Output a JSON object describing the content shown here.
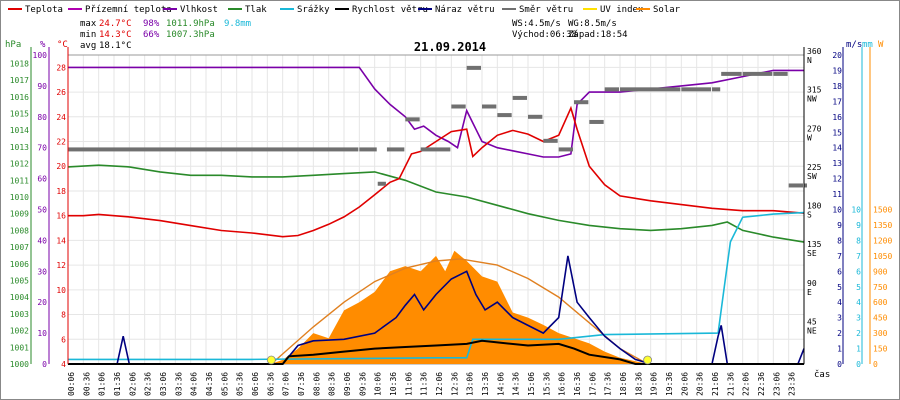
{
  "legend": [
    {
      "label": "Teplota",
      "color": "#e00000"
    },
    {
      "label": "Přízemní teplota",
      "color": "#b000b0"
    },
    {
      "label": "Vlhkost",
      "color": "#7a00a8"
    },
    {
      "label": "Tlak",
      "color": "#2a8a2a"
    },
    {
      "label": "Srážky",
      "color": "#1ab8d8"
    },
    {
      "label": "Rychlost větru",
      "color": "#000000"
    },
    {
      "label": "Náraz větru",
      "color": "#000080"
    },
    {
      "label": "Směr větru",
      "color": "#707070"
    },
    {
      "label": "UV index",
      "color": "#ffe000"
    },
    {
      "label": "Solar",
      "color": "#ff8c00"
    }
  ],
  "stats": {
    "max_label": "max",
    "max_temp": "24.7°C",
    "max_hum": "98%",
    "max_press": "1011.9hPa",
    "max_rain": "9.8mm",
    "min_label": "min",
    "min_temp": "14.3°C",
    "min_hum": "66%",
    "min_press": "1007.3hPa",
    "avg_label": "avg",
    "avg_temp": "18.1°C"
  },
  "wind_info": {
    "ws": "WS:4.5m/s",
    "wg": "WG:8.5m/s",
    "sunrise": "Východ:06:38",
    "sunset": "Západ:18:54"
  },
  "chart_data": {
    "type": "line",
    "title": "21.09.2014",
    "xlabel": "čas",
    "x_ticks": [
      "00:06",
      "00:36",
      "01:06",
      "01:36",
      "02:06",
      "02:36",
      "03:06",
      "03:36",
      "04:06",
      "04:36",
      "05:06",
      "05:36",
      "06:06",
      "06:36",
      "07:06",
      "07:36",
      "08:06",
      "08:36",
      "09:06",
      "09:36",
      "10:06",
      "10:36",
      "11:06",
      "11:36",
      "12:06",
      "12:36",
      "13:06",
      "13:36",
      "14:06",
      "14:36",
      "15:06",
      "15:36",
      "16:06",
      "16:36",
      "17:06",
      "17:36",
      "18:06",
      "18:36",
      "19:06",
      "19:36",
      "20:06",
      "20:36",
      "21:06",
      "21:36",
      "22:06",
      "22:36",
      "23:06",
      "23:36"
    ],
    "axes": {
      "hPa": {
        "label": "hPa",
        "ticks": [
          "1000",
          "1001",
          "1002",
          "1003",
          "1004",
          "1005",
          "1006",
          "1007",
          "1008",
          "1009",
          "1010",
          "1011",
          "1012",
          "1013",
          "1014",
          "1015",
          "1016",
          "1017",
          "1018"
        ],
        "range": [
          1000,
          1018.5
        ]
      },
      "percent": {
        "label": "%",
        "ticks": [
          "0",
          "10",
          "20",
          "30",
          "40",
          "50",
          "60",
          "70",
          "80",
          "90",
          "100"
        ],
        "range": [
          0,
          100
        ]
      },
      "celsius": {
        "label": "°C",
        "ticks": [
          "4",
          "6",
          "8",
          "10",
          "12",
          "14",
          "16",
          "18",
          "20",
          "22",
          "24",
          "26",
          "28"
        ],
        "range": [
          4,
          29
        ]
      },
      "direction": {
        "ticks": [
          {
            "deg": "45",
            "dir": "NE"
          },
          {
            "deg": "90",
            "dir": "E"
          },
          {
            "deg": "135",
            "dir": "SE"
          },
          {
            "deg": "180",
            "dir": "S"
          },
          {
            "deg": "225",
            "dir": "SW"
          },
          {
            "deg": "270",
            "dir": "W"
          },
          {
            "deg": "315",
            "dir": "NW"
          },
          {
            "deg": "360",
            "dir": "N"
          }
        ],
        "range": [
          0,
          360
        ]
      },
      "ms": {
        "label": "m/s",
        "ticks": [
          "0",
          "1",
          "2",
          "3",
          "4",
          "5",
          "6",
          "7",
          "8",
          "9",
          "10",
          "11",
          "12",
          "13",
          "14",
          "15",
          "16",
          "17",
          "18",
          "19",
          "20"
        ],
        "range": [
          0,
          20
        ]
      },
      "mm": {
        "label": "mm",
        "ticks": [
          "0",
          "1",
          "2",
          "3",
          "4",
          "5",
          "6",
          "7",
          "8",
          "9",
          "10"
        ],
        "range": [
          0,
          20
        ]
      },
      "w": {
        "label": "W",
        "ticks": [
          "0",
          "150",
          "300",
          "450",
          "600",
          "750",
          "900",
          "1050",
          "1200",
          "1350",
          "1500"
        ],
        "range": [
          0,
          3000
        ]
      }
    },
    "series": {
      "temperature": {
        "name": "Teplota",
        "unit": "°C",
        "points": [
          [
            0,
            16.0
          ],
          [
            0.5,
            16.0
          ],
          [
            1,
            16.1
          ],
          [
            2,
            15.9
          ],
          [
            3,
            15.6
          ],
          [
            4,
            15.2
          ],
          [
            5,
            14.8
          ],
          [
            6,
            14.6
          ],
          [
            7,
            14.3
          ],
          [
            7.5,
            14.4
          ],
          [
            8,
            14.8
          ],
          [
            8.5,
            15.3
          ],
          [
            9,
            15.9
          ],
          [
            9.5,
            16.7
          ],
          [
            10,
            17.7
          ],
          [
            10.5,
            18.7
          ],
          [
            10.8,
            19.0
          ],
          [
            11.2,
            21.0
          ],
          [
            11.5,
            21.2
          ],
          [
            12,
            22.0
          ],
          [
            12.5,
            22.8
          ],
          [
            13,
            23.0
          ],
          [
            13.2,
            20.8
          ],
          [
            13.5,
            21.5
          ],
          [
            14,
            22.5
          ],
          [
            14.5,
            22.9
          ],
          [
            15,
            22.6
          ],
          [
            15.5,
            22.0
          ],
          [
            16,
            22.5
          ],
          [
            16.4,
            24.7
          ],
          [
            16.6,
            23.0
          ],
          [
            17,
            20.0
          ],
          [
            17.5,
            18.5
          ],
          [
            18,
            17.6
          ],
          [
            19,
            17.2
          ],
          [
            20,
            16.9
          ],
          [
            21,
            16.6
          ],
          [
            22,
            16.4
          ],
          [
            23,
            16.4
          ],
          [
            24,
            16.2
          ]
        ]
      },
      "humidity": {
        "name": "Vlhkost",
        "unit": "%",
        "points": [
          [
            0,
            96
          ],
          [
            1,
            96
          ],
          [
            2,
            96
          ],
          [
            4,
            96
          ],
          [
            6,
            96
          ],
          [
            8,
            96
          ],
          [
            9.5,
            96
          ],
          [
            10,
            89
          ],
          [
            10.5,
            84
          ],
          [
            11,
            80
          ],
          [
            11.3,
            76
          ],
          [
            11.6,
            77
          ],
          [
            12,
            74
          ],
          [
            12.4,
            72
          ],
          [
            12.7,
            70
          ],
          [
            13,
            82
          ],
          [
            13.3,
            76
          ],
          [
            13.5,
            72
          ],
          [
            14,
            70
          ],
          [
            14.5,
            69
          ],
          [
            15,
            68
          ],
          [
            15.5,
            67
          ],
          [
            16,
            67
          ],
          [
            16.4,
            68
          ],
          [
            16.6,
            84
          ],
          [
            17,
            88
          ],
          [
            17.5,
            88
          ],
          [
            18,
            88
          ],
          [
            19,
            89
          ],
          [
            20,
            90
          ],
          [
            21,
            91
          ],
          [
            22,
            93
          ],
          [
            23,
            95
          ],
          [
            24,
            95
          ]
        ]
      },
      "pressure": {
        "name": "Tlak",
        "unit": "hPa",
        "points": [
          [
            0,
            1011.8
          ],
          [
            1,
            1011.9
          ],
          [
            2,
            1011.8
          ],
          [
            3,
            1011.5
          ],
          [
            4,
            1011.3
          ],
          [
            5,
            1011.3
          ],
          [
            6,
            1011.2
          ],
          [
            7,
            1011.2
          ],
          [
            8,
            1011.3
          ],
          [
            9,
            1011.4
          ],
          [
            10,
            1011.5
          ],
          [
            11,
            1011.0
          ],
          [
            12,
            1010.3
          ],
          [
            13,
            1010.0
          ],
          [
            14,
            1009.5
          ],
          [
            15,
            1009.0
          ],
          [
            16,
            1008.6
          ],
          [
            17,
            1008.3
          ],
          [
            18,
            1008.1
          ],
          [
            19,
            1008.0
          ],
          [
            20,
            1008.1
          ],
          [
            21,
            1008.3
          ],
          [
            21.5,
            1008.5
          ],
          [
            22,
            1008.0
          ],
          [
            23,
            1007.6
          ],
          [
            24,
            1007.3
          ]
        ]
      },
      "rain": {
        "name": "Srážky",
        "unit": "mm",
        "points": [
          [
            0,
            0.3
          ],
          [
            6,
            0.3
          ],
          [
            12,
            0.4
          ],
          [
            13,
            0.4
          ],
          [
            13.2,
            1.6
          ],
          [
            16,
            1.6
          ],
          [
            17.5,
            1.9
          ],
          [
            21.2,
            2.0
          ],
          [
            21.4,
            5.0
          ],
          [
            21.6,
            7.9
          ],
          [
            22,
            9.5
          ],
          [
            23,
            9.7
          ],
          [
            24,
            9.8
          ]
        ]
      },
      "wind_speed": {
        "name": "Rychlost větru",
        "unit": "m/s",
        "points": [
          [
            0,
            0
          ],
          [
            7,
            0
          ],
          [
            7.2,
            0.5
          ],
          [
            8,
            0.6
          ],
          [
            9,
            0.8
          ],
          [
            10,
            1.0
          ],
          [
            11,
            1.1
          ],
          [
            12,
            1.2
          ],
          [
            13,
            1.3
          ],
          [
            13.5,
            1.5
          ],
          [
            14,
            1.4
          ],
          [
            15,
            1.2
          ],
          [
            16,
            1.3
          ],
          [
            16.5,
            1.0
          ],
          [
            17,
            0.6
          ],
          [
            18,
            0.3
          ],
          [
            18.5,
            0
          ],
          [
            24,
            0
          ]
        ]
      },
      "wind_gust": {
        "name": "Náraz větru",
        "unit": "m/s",
        "points": [
          [
            0,
            0
          ],
          [
            1.6,
            0
          ],
          [
            1.8,
            1.8
          ],
          [
            2.0,
            0
          ],
          [
            7,
            0
          ],
          [
            7.5,
            1.2
          ],
          [
            8,
            1.5
          ],
          [
            9,
            1.6
          ],
          [
            10,
            2.0
          ],
          [
            10.7,
            3.0
          ],
          [
            11,
            3.8
          ],
          [
            11.3,
            4.5
          ],
          [
            11.6,
            3.5
          ],
          [
            12,
            4.5
          ],
          [
            12.5,
            5.5
          ],
          [
            13,
            6.0
          ],
          [
            13.3,
            4.5
          ],
          [
            13.6,
            3.5
          ],
          [
            14,
            4.0
          ],
          [
            14.5,
            3.0
          ],
          [
            15,
            2.5
          ],
          [
            15.5,
            2.0
          ],
          [
            16,
            3.0
          ],
          [
            16.3,
            7.0
          ],
          [
            16.6,
            4.0
          ],
          [
            17,
            3.0
          ],
          [
            17.5,
            1.8
          ],
          [
            18,
            1.0
          ],
          [
            18.5,
            0.3
          ],
          [
            19,
            0
          ],
          [
            21,
            0
          ],
          [
            21.2,
            1.8
          ],
          [
            21.3,
            2.5
          ],
          [
            21.5,
            0
          ],
          [
            23.8,
            0
          ],
          [
            24,
            1.0
          ]
        ]
      },
      "wind_direction": {
        "name": "Směr větru",
        "unit": "deg",
        "points": [
          [
            0,
            250
          ],
          [
            9.5,
            250
          ],
          [
            10.1,
            210
          ],
          [
            10.4,
            250
          ],
          [
            11,
            285
          ],
          [
            11.5,
            250
          ],
          [
            12.5,
            300
          ],
          [
            13,
            345
          ],
          [
            13.5,
            300
          ],
          [
            14,
            290
          ],
          [
            14.5,
            310
          ],
          [
            15,
            288
          ],
          [
            15.5,
            260
          ],
          [
            16,
            250
          ],
          [
            16.5,
            305
          ],
          [
            17,
            282
          ],
          [
            17.5,
            320
          ],
          [
            18,
            320
          ],
          [
            20,
            320
          ],
          [
            21,
            320
          ],
          [
            21.3,
            338
          ],
          [
            22,
            338
          ],
          [
            23,
            338
          ],
          [
            23.5,
            208
          ],
          [
            24,
            208
          ]
        ]
      },
      "solar": {
        "name": "Solar",
        "unit": "W",
        "points": [
          [
            6.6,
            0
          ],
          [
            7,
            40
          ],
          [
            7.5,
            150
          ],
          [
            8,
            300
          ],
          [
            8.5,
            250
          ],
          [
            9,
            520
          ],
          [
            9.5,
            600
          ],
          [
            10,
            700
          ],
          [
            10.5,
            900
          ],
          [
            11,
            950
          ],
          [
            11.5,
            900
          ],
          [
            12,
            1050
          ],
          [
            12.3,
            900
          ],
          [
            12.6,
            1100
          ],
          [
            13,
            1000
          ],
          [
            13.5,
            850
          ],
          [
            14,
            800
          ],
          [
            14.5,
            500
          ],
          [
            15,
            450
          ],
          [
            15.5,
            380
          ],
          [
            16,
            300
          ],
          [
            16.5,
            250
          ],
          [
            17,
            200
          ],
          [
            17.5,
            120
          ],
          [
            18,
            60
          ],
          [
            18.9,
            0
          ]
        ]
      },
      "solar_theoretical": {
        "name": "Solar",
        "unit": "W",
        "points": [
          [
            6.63,
            0
          ],
          [
            8,
            360
          ],
          [
            9,
            600
          ],
          [
            10,
            800
          ],
          [
            11,
            930
          ],
          [
            12,
            1000
          ],
          [
            12.8,
            1020
          ],
          [
            14,
            960
          ],
          [
            15,
            830
          ],
          [
            16,
            650
          ],
          [
            17,
            400
          ],
          [
            18,
            150
          ],
          [
            18.9,
            0
          ]
        ]
      }
    }
  }
}
